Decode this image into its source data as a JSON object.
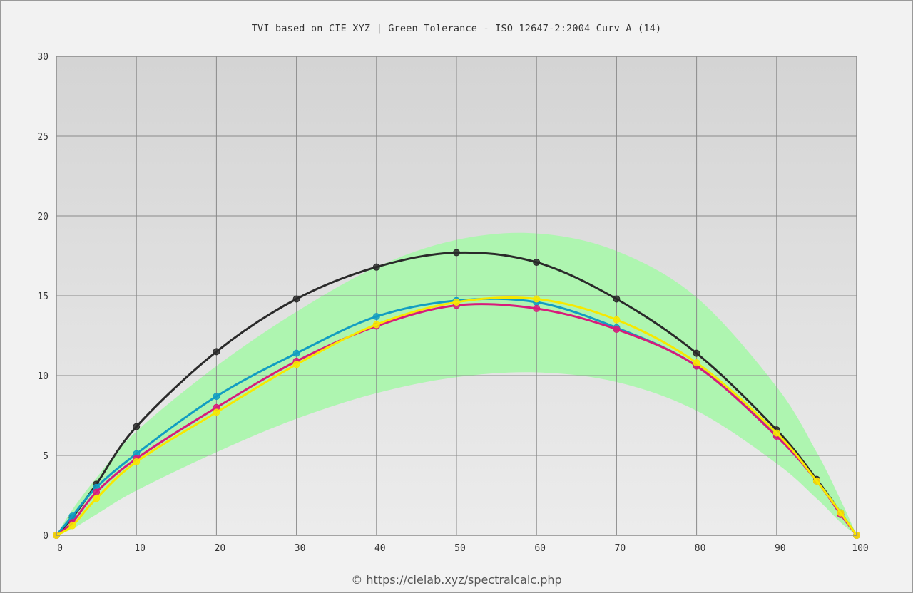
{
  "title": "TVI based on CIE XYZ  |  Green Tolerance - ISO 12647-2:2004 Curv A (14)",
  "footer": "© https://cielab.xyz/spectralcalc.php",
  "colors": {
    "tolerance": "#aef5b0",
    "black": "#2a2a2a",
    "cyan": "#129dc2",
    "magenta": "#d81b7b",
    "yellow": "#f7e800",
    "grid": "#8a8a8a",
    "plot_bg_top": "#d4d4d4",
    "plot_bg_bottom": "#ececec"
  },
  "chart_data": {
    "type": "line",
    "title": "TVI based on CIE XYZ  |  Green Tolerance - ISO 12647-2:2004 Curv A (14)",
    "xlim": [
      0,
      100
    ],
    "ylim": [
      0,
      30
    ],
    "x_ticks": [
      0,
      10,
      20,
      30,
      40,
      50,
      60,
      70,
      80,
      90,
      100
    ],
    "y_ticks": [
      0,
      5,
      10,
      15,
      20,
      25,
      30
    ],
    "grid": true,
    "tolerance_band": {
      "x": [
        0,
        2,
        5,
        10,
        20,
        30,
        40,
        50,
        60,
        70,
        80,
        90,
        95,
        98,
        100
      ],
      "upper": [
        0,
        1.6,
        3.6,
        6.5,
        10.6,
        14.0,
        16.8,
        18.5,
        18.9,
        17.8,
        14.9,
        9.3,
        5.2,
        2.2,
        0
      ],
      "lower": [
        0,
        0.4,
        1.3,
        2.8,
        5.2,
        7.3,
        8.9,
        9.9,
        10.2,
        9.6,
        7.8,
        4.5,
        2.3,
        0.8,
        0
      ]
    },
    "series": [
      {
        "color_key": "black",
        "x": [
          0,
          2,
          5,
          10,
          20,
          30,
          40,
          50,
          60,
          70,
          80,
          90,
          95,
          98,
          100
        ],
        "y": [
          0,
          1.1,
          3.2,
          6.8,
          11.5,
          14.8,
          16.8,
          17.7,
          17.1,
          14.8,
          11.4,
          6.6,
          3.5,
          1.4,
          0
        ]
      },
      {
        "color_key": "cyan",
        "x": [
          0,
          2,
          5,
          10,
          20,
          30,
          40,
          50,
          60,
          70,
          80,
          90,
          95,
          98,
          100
        ],
        "y": [
          0,
          1.2,
          3.0,
          5.1,
          8.7,
          11.4,
          13.7,
          14.7,
          14.6,
          13.0,
          10.6,
          6.3,
          3.4,
          1.4,
          0
        ]
      },
      {
        "color_key": "magenta",
        "x": [
          0,
          2,
          5,
          10,
          20,
          30,
          40,
          50,
          60,
          70,
          80,
          90,
          95,
          98,
          100
        ],
        "y": [
          0,
          0.8,
          2.7,
          4.8,
          8.0,
          10.9,
          13.1,
          14.4,
          14.2,
          12.9,
          10.6,
          6.2,
          3.4,
          1.3,
          0
        ]
      },
      {
        "color_key": "yellow",
        "x": [
          0,
          2,
          5,
          10,
          20,
          30,
          40,
          50,
          60,
          70,
          80,
          90,
          95,
          98,
          100
        ],
        "y": [
          0,
          0.6,
          2.3,
          4.6,
          7.7,
          10.7,
          13.2,
          14.6,
          14.8,
          13.5,
          10.8,
          6.4,
          3.4,
          1.4,
          0
        ]
      }
    ]
  }
}
